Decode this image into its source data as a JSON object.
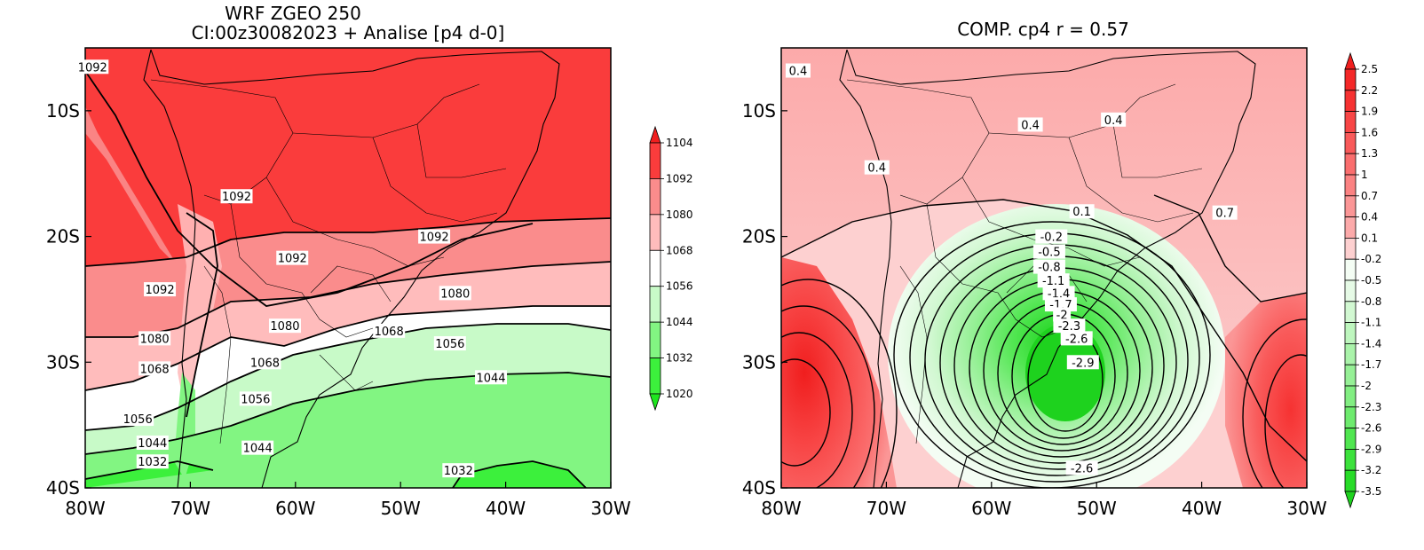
{
  "left_panel": {
    "title_line1": "WRF ZGEO 250",
    "title_line2": "CI:00z30082023 + Analise  [p4 d-0]",
    "x_ticks": [
      "80W",
      "70W",
      "60W",
      "50W",
      "40W",
      "30W"
    ],
    "y_ticks": [
      "10S",
      "20S",
      "30S",
      "40S"
    ],
    "colorbar_labels": [
      "1104",
      "1092",
      "1080",
      "1068",
      "1056",
      "1044",
      "1032",
      "1020"
    ],
    "colorbar_colors": [
      "#f01e1e",
      "#fa3c3c",
      "#fa8c8c",
      "#ffbcbc",
      "#ffffff",
      "#c8fac8",
      "#82f582",
      "#3cf03c",
      "#1ee61e"
    ],
    "contour_labels": [
      {
        "text": "1092",
        "lon": -79.3,
        "lat": -6.5
      },
      {
        "text": "1092",
        "lon": -65.6,
        "lat": -16.8
      },
      {
        "text": "1092",
        "lon": -60.3,
        "lat": -21.7
      },
      {
        "text": "1092",
        "lon": -46.8,
        "lat": -20.0
      },
      {
        "text": "1092",
        "lon": -72.9,
        "lat": -24.2
      },
      {
        "text": "1080",
        "lon": -44.8,
        "lat": -24.5
      },
      {
        "text": "1080",
        "lon": -61.0,
        "lat": -27.1
      },
      {
        "text": "1080",
        "lon": -73.4,
        "lat": -28.1
      },
      {
        "text": "1068",
        "lon": -51.1,
        "lat": -27.5
      },
      {
        "text": "1068",
        "lon": -62.9,
        "lat": -30.0
      },
      {
        "text": "1068",
        "lon": -73.4,
        "lat": -30.5
      },
      {
        "text": "1056",
        "lon": -45.3,
        "lat": -28.5
      },
      {
        "text": "1056",
        "lon": -63.8,
        "lat": -32.9
      },
      {
        "text": "1056",
        "lon": -75.0,
        "lat": -34.5
      },
      {
        "text": "1044",
        "lon": -41.4,
        "lat": -31.2
      },
      {
        "text": "1044",
        "lon": -63.6,
        "lat": -36.8
      },
      {
        "text": "1044",
        "lon": -73.6,
        "lat": -36.4
      },
      {
        "text": "1032",
        "lon": -73.6,
        "lat": -37.9
      },
      {
        "text": "1032",
        "lon": -44.5,
        "lat": -38.6
      }
    ]
  },
  "right_panel": {
    "title": "COMP. cp4  r =  0.57",
    "x_ticks": [
      "80W",
      "70W",
      "60W",
      "50W",
      "40W",
      "30W"
    ],
    "y_ticks": [
      "10S",
      "20S",
      "30S",
      "40S"
    ],
    "colorbar_labels": [
      "2.5",
      "2.2",
      "1.9",
      "1.6",
      "1.3",
      "1",
      "0.7",
      "0.4",
      "0.1",
      "-0.2",
      "-0.5",
      "-0.8",
      "-1.1",
      "-1.4",
      "-1.7",
      "-2",
      "-2.3",
      "-2.6",
      "-2.9",
      "-3.2",
      "-3.5"
    ],
    "colorbar_colors": [
      "#f01e1e",
      "#f42828",
      "#f63232",
      "#f84646",
      "#f95a5a",
      "#fa6e6e",
      "#fb8282",
      "#fb9696",
      "#fcaaaa",
      "#fdd0d0",
      "#f4fdf4",
      "#e6fae6",
      "#d2f8d2",
      "#bef6be",
      "#aaf3aa",
      "#96f096",
      "#82ee82",
      "#6eeb6e",
      "#50e650",
      "#3ce23c",
      "#28dc28",
      "#1ed21e"
    ],
    "contour_labels": [
      {
        "text": "0.4",
        "lon": -78.4,
        "lat": -6.8
      },
      {
        "text": "0.4",
        "lon": -56.3,
        "lat": -11.1
      },
      {
        "text": "0.4",
        "lon": -48.4,
        "lat": -10.7
      },
      {
        "text": "0.4",
        "lon": -70.9,
        "lat": -14.5
      },
      {
        "text": "0.1",
        "lon": -51.4,
        "lat": -18.0
      },
      {
        "text": "0.7",
        "lon": -37.8,
        "lat": -18.1
      },
      {
        "text": "-0.2",
        "lon": -54.3,
        "lat": -20.0
      },
      {
        "text": "-0.5",
        "lon": -54.5,
        "lat": -21.2
      },
      {
        "text": "-0.8",
        "lon": -54.5,
        "lat": -22.4
      },
      {
        "text": "-1.1",
        "lon": -54.1,
        "lat": -23.5
      },
      {
        "text": "-1.4",
        "lon": -53.6,
        "lat": -24.5
      },
      {
        "text": "-1.7",
        "lon": -53.4,
        "lat": -25.4
      },
      {
        "text": "-2",
        "lon": -53.3,
        "lat": -26.2
      },
      {
        "text": "-2.3",
        "lon": -52.6,
        "lat": -27.1
      },
      {
        "text": "-2.6",
        "lon": -51.9,
        "lat": -28.1
      },
      {
        "text": "-2.9",
        "lon": -51.3,
        "lat": -30.0
      },
      {
        "text": "-2.6",
        "lon": -51.4,
        "lat": -38.4
      }
    ]
  }
}
